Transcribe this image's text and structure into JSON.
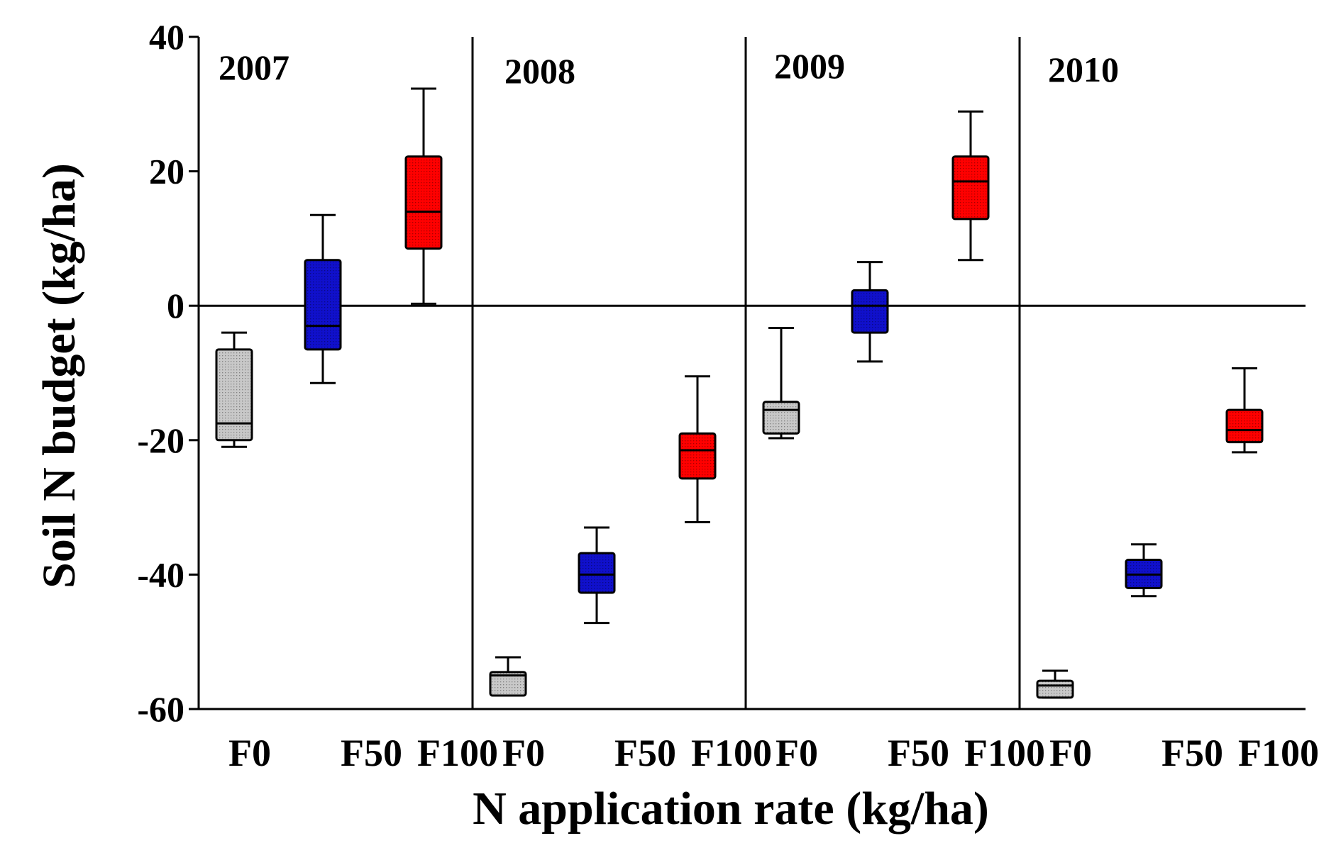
{
  "chart_data": {
    "type": "box",
    "title": "",
    "xlabel": "N application rate (kg/ha)",
    "ylabel": "Soil N budget (kg/ha)",
    "ylim": [
      -60,
      40
    ],
    "yticks": [
      40,
      20,
      0,
      -20,
      -40,
      -60
    ],
    "ytick_labels": [
      "40",
      "20",
      "0",
      "-20",
      "-40",
      "-60"
    ],
    "colors": {
      "F0": "#c8c8c8",
      "F50": "#1010cc",
      "F100": "#ff0000"
    },
    "panels": [
      {
        "year": "2007",
        "categories": [
          "F0",
          "F50",
          "F100"
        ],
        "boxes": [
          {
            "name": "F0",
            "whisker_low": -21,
            "q1": -20,
            "median": -17.5,
            "q3": -6.5,
            "whisker_high": -4
          },
          {
            "name": "F50",
            "whisker_low": -11.5,
            "q1": -6.5,
            "median": -3,
            "q3": 6.8,
            "whisker_high": 13.5
          },
          {
            "name": "F100",
            "whisker_low": 0.3,
            "q1": 8.5,
            "median": 14,
            "q3": 22.2,
            "whisker_high": 32.3
          }
        ]
      },
      {
        "year": "2008",
        "categories": [
          "F0",
          "F50",
          "F100"
        ],
        "boxes": [
          {
            "name": "F0",
            "whisker_low": -58,
            "q1": -58,
            "median": -55,
            "q3": -54.5,
            "whisker_high": -52.3
          },
          {
            "name": "F50",
            "whisker_low": -47.2,
            "q1": -42.7,
            "median": -40,
            "q3": -36.8,
            "whisker_high": -33
          },
          {
            "name": "F100",
            "whisker_low": -32.2,
            "q1": -25.7,
            "median": -21.5,
            "q3": -19,
            "whisker_high": -10.5
          }
        ]
      },
      {
        "year": "2009",
        "categories": [
          "F0",
          "F50",
          "F100"
        ],
        "boxes": [
          {
            "name": "F0",
            "whisker_low": -19.7,
            "q1": -19,
            "median": -15.5,
            "q3": -14.3,
            "whisker_high": -3.3
          },
          {
            "name": "F50",
            "whisker_low": -8.3,
            "q1": -4,
            "median": 0,
            "q3": 2.3,
            "whisker_high": 6.5
          },
          {
            "name": "F100",
            "whisker_low": 6.8,
            "q1": 12.9,
            "median": 18.5,
            "q3": 22.2,
            "whisker_high": 28.9
          }
        ]
      },
      {
        "year": "2010",
        "categories": [
          "F0",
          "F50",
          "F100"
        ],
        "boxes": [
          {
            "name": "F0",
            "whisker_low": -58.3,
            "q1": -58.3,
            "median": -56.5,
            "q3": -55.8,
            "whisker_high": -54.3
          },
          {
            "name": "F50",
            "whisker_low": -43.2,
            "q1": -42,
            "median": -40,
            "q3": -37.8,
            "whisker_high": -35.5
          },
          {
            "name": "F100",
            "whisker_low": -21.8,
            "q1": -20.3,
            "median": -18.5,
            "q3": -15.5,
            "whisker_high": -9.3
          }
        ]
      }
    ]
  }
}
